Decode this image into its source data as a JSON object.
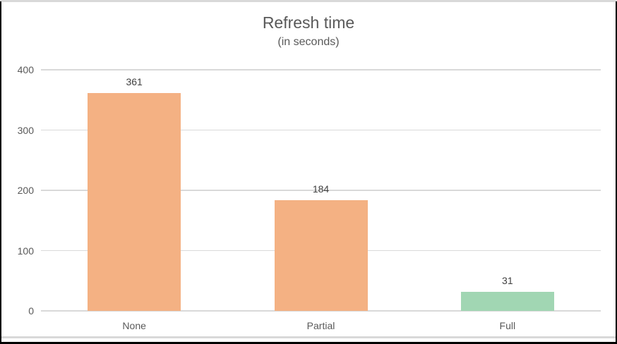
{
  "window": {
    "background": "#ffffff",
    "frame_color": "#000000",
    "chrome_line_color": "#d9d9d9"
  },
  "chart_data": {
    "type": "bar",
    "title": "Refresh time",
    "subtitle": "(in seconds)",
    "categories": [
      "None",
      "Partial",
      "Full"
    ],
    "values": [
      361,
      184,
      31
    ],
    "bar_colors": [
      "#F4B183",
      "#F4B183",
      "#A1D6B3"
    ],
    "yticks": [
      0,
      100,
      200,
      300,
      400
    ],
    "ylim": [
      0,
      400
    ],
    "grid": true,
    "legend": "none",
    "gridline_color": "#D9D9D9",
    "axis_label_color": "#595959",
    "value_label_color": "#404040",
    "title_color": "#595959"
  }
}
